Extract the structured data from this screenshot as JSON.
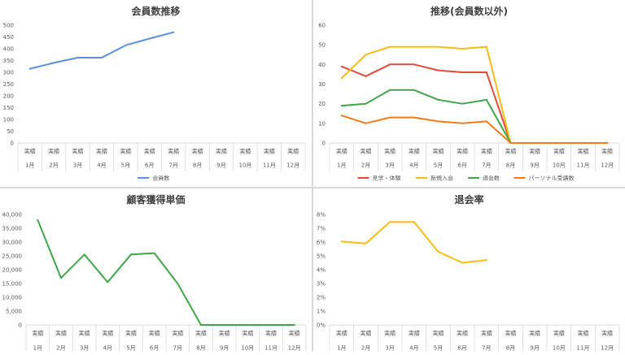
{
  "colors": {
    "blue": "#5b8fdc",
    "red": "#e04b3a",
    "yellow": "#f6bd16",
    "green": "#3fa64a",
    "orange": "#f07c1d",
    "grid": "#d9d9d9",
    "text": "#595959",
    "title": "#404040"
  },
  "chart_data": [
    {
      "id": "members",
      "type": "line",
      "title": "会員数推移",
      "xlabel": "",
      "ylabel": "",
      "ylim": [
        0,
        500
      ],
      "yticks": [
        0,
        50,
        100,
        150,
        200,
        250,
        300,
        350,
        400,
        450,
        500
      ],
      "ytick_labels": [
        "0",
        "50",
        "100",
        "150",
        "200",
        "250",
        "300",
        "350",
        "400",
        "450",
        "500"
      ],
      "categories_top": [
        "実績",
        "実績",
        "実績",
        "実績",
        "実績",
        "実績",
        "実績",
        "実績",
        "実績",
        "実績",
        "実績",
        "実績"
      ],
      "categories": [
        "1月",
        "2月",
        "3月",
        "4月",
        "5月",
        "6月",
        "7月",
        "8月",
        "9月",
        "10月",
        "11月",
        "12月"
      ],
      "grid": false,
      "legend_position": "bottom",
      "series": [
        {
          "name": "会員数",
          "color": "#5b8fdc",
          "values": [
            315,
            340,
            362,
            362,
            415,
            443,
            470,
            null,
            null,
            null,
            null,
            null
          ]
        }
      ]
    },
    {
      "id": "breakdown",
      "type": "line",
      "title": "推移(会員数以外)",
      "xlabel": "",
      "ylabel": "",
      "ylim": [
        0,
        60
      ],
      "yticks": [
        0,
        10,
        20,
        30,
        40,
        50,
        60
      ],
      "ytick_labels": [
        "0",
        "10",
        "20",
        "30",
        "40",
        "50",
        "60"
      ],
      "categories_top": [
        "実績",
        "実績",
        "実績",
        "実績",
        "実績",
        "実績",
        "実績",
        "実績",
        "実績",
        "実績",
        "実績",
        "実績"
      ],
      "categories": [
        "1月",
        "2月",
        "3月",
        "4月",
        "5月",
        "6月",
        "7月",
        "8月",
        "9月",
        "10月",
        "11月",
        "12月"
      ],
      "grid": false,
      "legend_position": "bottom",
      "series": [
        {
          "name": "見学・体験",
          "color": "#e04b3a",
          "values": [
            39,
            34,
            40,
            40,
            37,
            36,
            36,
            0,
            0,
            0,
            0,
            0
          ]
        },
        {
          "name": "新規入会",
          "color": "#f6bd16",
          "values": [
            33,
            45,
            49,
            49,
            49,
            48,
            49,
            0,
            0,
            0,
            0,
            0
          ]
        },
        {
          "name": "退会数",
          "color": "#3fa64a",
          "values": [
            19,
            20,
            27,
            27,
            22,
            20,
            22,
            0,
            0,
            0,
            0,
            0
          ]
        },
        {
          "name": "パーソナル受講数",
          "color": "#f07c1d",
          "values": [
            14,
            10,
            13,
            13,
            11,
            10,
            11,
            0,
            0,
            0,
            0,
            0
          ]
        }
      ]
    },
    {
      "id": "acquisition",
      "type": "line",
      "title": "顧客獲得単価",
      "xlabel": "",
      "ylabel": "",
      "ylim": [
        0,
        40000
      ],
      "yticks": [
        0,
        5000,
        10000,
        15000,
        20000,
        25000,
        30000,
        35000,
        40000
      ],
      "ytick_labels": [
        "0",
        "5,000",
        "10,000",
        "15,000",
        "20,000",
        "25,000",
        "30,000",
        "35,000",
        "40,000"
      ],
      "categories_top": [
        "実績",
        "実績",
        "実績",
        "実績",
        "実績",
        "実績",
        "実績",
        "実績",
        "実績",
        "実績",
        "実績",
        "実績"
      ],
      "categories": [
        "1月",
        "2月",
        "3月",
        "4月",
        "5月",
        "6月",
        "7月",
        "8月",
        "9月",
        "10月",
        "11月",
        "12月"
      ],
      "grid": false,
      "legend_position": "none",
      "series": [
        {
          "color": "#3fa64a",
          "values": [
            38000,
            17000,
            25500,
            15500,
            25500,
            26000,
            15000,
            0,
            0,
            0,
            0,
            0
          ]
        }
      ]
    },
    {
      "id": "churn",
      "type": "line",
      "title": "退会率",
      "xlabel": "",
      "ylabel": "",
      "ylim": [
        0,
        8
      ],
      "yticks": [
        0,
        1,
        2,
        3,
        4,
        5,
        6,
        7,
        8
      ],
      "ytick_labels": [
        "0%",
        "1%",
        "2%",
        "3%",
        "4%",
        "5%",
        "6%",
        "7%",
        "8%"
      ],
      "categories_top": [
        "実績",
        "実績",
        "実績",
        "実績",
        "実績",
        "実績",
        "実績",
        "実績",
        "実績",
        "実績",
        "実績",
        "実績"
      ],
      "categories": [
        "1月",
        "2月",
        "3月",
        "4月",
        "5月",
        "6月",
        "7月",
        "8月",
        "9月",
        "10月",
        "11月",
        "12月"
      ],
      "grid": false,
      "legend_position": "none",
      "series": [
        {
          "color": "#f6bd16",
          "values": [
            6.05,
            5.9,
            7.45,
            7.45,
            5.3,
            4.5,
            4.7,
            null,
            null,
            null,
            null,
            null
          ]
        }
      ]
    }
  ]
}
